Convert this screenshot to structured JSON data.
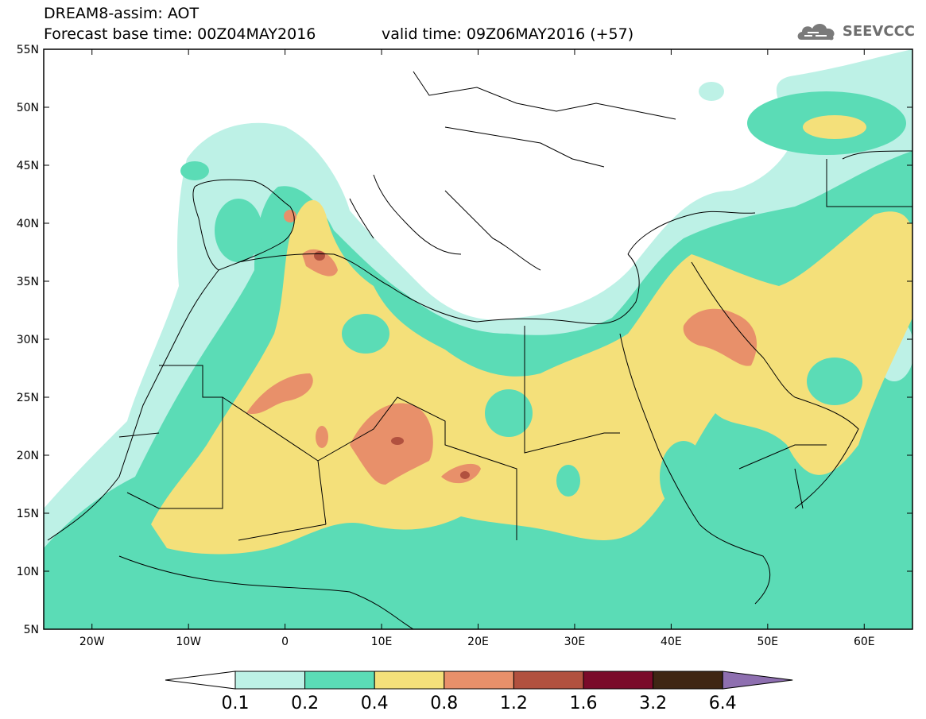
{
  "title": {
    "line1": "DREAM8-assim: AOT",
    "base_time": "Forecast base time: 00Z04MAY2016",
    "valid_time": "valid time: 09Z06MAY2016 (+57)"
  },
  "logo": {
    "text": "SEEVCCC",
    "icon": "cloud-icon"
  },
  "axes": {
    "lat_labels": [
      "55N",
      "50N",
      "45N",
      "40N",
      "35N",
      "30N",
      "25N",
      "20N",
      "15N",
      "10N",
      "5N"
    ],
    "lat_values": [
      55,
      50,
      45,
      40,
      35,
      30,
      25,
      20,
      15,
      10,
      5
    ],
    "lon_labels": [
      "20W",
      "10W",
      "0",
      "10E",
      "20E",
      "30E",
      "40E",
      "50E",
      "60E"
    ],
    "lon_values": [
      -20,
      -10,
      0,
      10,
      20,
      30,
      40,
      50,
      60
    ],
    "lon_range": [
      -25,
      65
    ],
    "lat_range": [
      5,
      55
    ]
  },
  "colorbar": {
    "levels": [
      "0.1",
      "0.2",
      "0.4",
      "0.8",
      "1.2",
      "1.6",
      "3.2",
      "6.4"
    ],
    "colors": [
      "#ffffff",
      "#bdf1e6",
      "#5bdcb6",
      "#f4e07a",
      "#e8906a",
      "#b1513f",
      "#7a0b2a",
      "#3f2614",
      "#8e6fb0"
    ]
  }
}
